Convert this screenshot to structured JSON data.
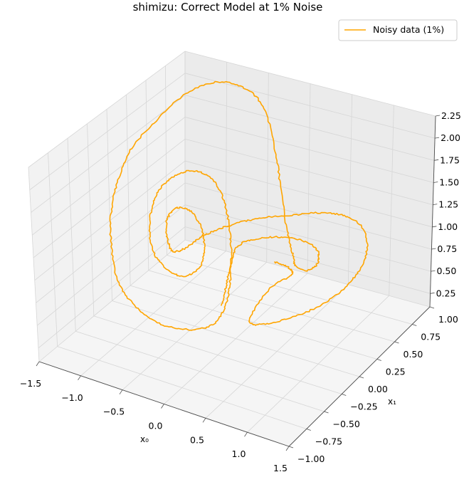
{
  "chart_data": {
    "type": "line",
    "title": "shimizu: Correct Model at 1% Noise",
    "xlabel": "x₀",
    "ylabel": "x₁",
    "zlabel": "",
    "xlim": [
      -1.5,
      1.5
    ],
    "ylim": [
      -1.0,
      1.0
    ],
    "zlim": [
      0.1,
      2.25
    ],
    "x_ticks": [
      "−1.5",
      "−1.0",
      "−0.5",
      "0.0",
      "0.5",
      "1.0",
      "1.5"
    ],
    "y_ticks": [
      "−1.00",
      "−0.75",
      "−0.50",
      "−0.25",
      "0.00",
      "0.25",
      "0.50",
      "0.75",
      "1.00"
    ],
    "z_ticks": [
      "0.25",
      "0.50",
      "0.75",
      "1.00",
      "1.25",
      "1.50",
      "1.75",
      "2.00",
      "2.25"
    ],
    "legend": {
      "position": "upper-right",
      "entries": [
        "Noisy data (1%)"
      ]
    },
    "grid": true,
    "series": [
      {
        "name": "Noisy data (1%)",
        "color": "#ffa500",
        "curve": "shimizu-morioka attractor trajectory (1% noise)"
      }
    ]
  }
}
